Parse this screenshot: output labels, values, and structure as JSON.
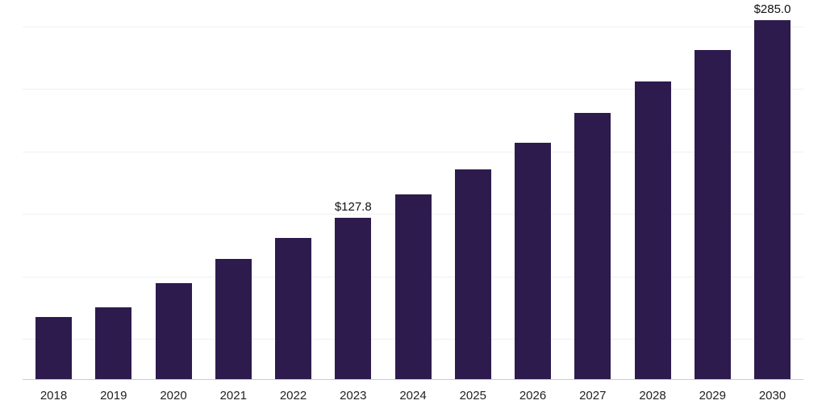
{
  "chart_data": {
    "type": "bar",
    "title": "",
    "xlabel": "",
    "ylabel": "",
    "categories": [
      "2018",
      "2019",
      "2020",
      "2021",
      "2022",
      "2023",
      "2024",
      "2025",
      "2026",
      "2027",
      "2028",
      "2029",
      "2030"
    ],
    "values": [
      49.2,
      57.0,
      76.2,
      95.5,
      112.0,
      127.8,
      146.7,
      166.5,
      187.7,
      211.4,
      236.4,
      261.4,
      285.0
    ],
    "data_labels": {
      "2023": "$127.8",
      "2030": "$285.0"
    },
    "ylim": [
      0,
      300
    ],
    "grid": "horizontal",
    "legend": "none",
    "bar_color": "#2d1b4e",
    "gridline_color": "#f0f0f0",
    "axis_line_color": "#cccccc",
    "label_color": "#111111",
    "background": "#ffffff"
  }
}
